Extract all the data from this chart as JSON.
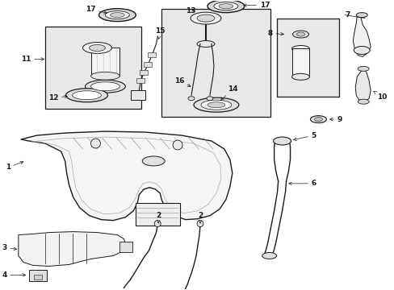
{
  "bg_color": "#ffffff",
  "line_color": "#1a1a1a",
  "box_gray": "#e8e8e8",
  "figsize": [
    4.89,
    3.6
  ],
  "dpi": 100
}
